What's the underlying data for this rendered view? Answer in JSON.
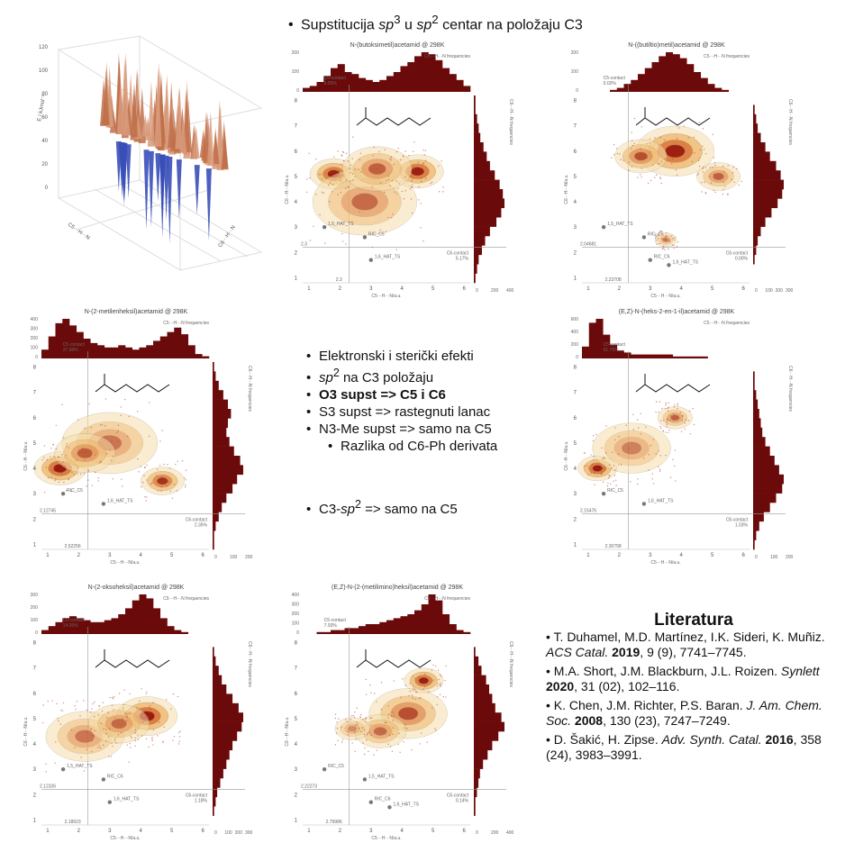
{
  "slide": {
    "top_bullet_marker": "•",
    "top_bullet_pre": "Supstitucija ",
    "top_bullet_sp3": "sp",
    "top_bullet_sup3": "3",
    "top_bullet_mid": " u ",
    "top_bullet_sp2": "sp",
    "top_bullet_sup2": "2",
    "top_bullet_post": " centar na položaju C3"
  },
  "mid_bullets": {
    "b1": "Elektronski i sterički efekti",
    "b2_sp": "sp",
    "b2_sup": "2",
    "b2_rest": " na C3 položaju",
    "b3": "O3 supst => C5 i C6",
    "b4": "S3 supst => rastegnuti lanac",
    "b5": "N3-Me supst => samo na C5",
    "b6": "Razlika od C6-Ph derivata",
    "b7_pre": "C3-",
    "b7_sp": "sp",
    "b7_sup": "2",
    "b7_post": " => samo na C5",
    "marker": "•"
  },
  "references": {
    "heading": "Literatura",
    "r1_pre": "• T. Duhamel, M.D. Martínez, I.K. Sideri, K. Muñiz. ",
    "r1_j": "ACS Catal.",
    "r1_y": "2019",
    "r1_post": ", 9 (9), 7741–7745.",
    "r2_pre": "• M.A. Short, J.M. Blackburn, J.L. Roizen. ",
    "r2_j": "Synlett",
    "r2_y": "2020",
    "r2_post": ", 31 (02), 102–116.",
    "r3_pre": "• K. Chen, J.M. Richter, P.S. Baran. ",
    "r3_j": "J. Am. Chem. Soc.",
    "r3_y": "2008",
    "r3_post": ", 130 (23), 7247–7249.",
    "r4_pre": "• D. Šakić, H. Zipse. ",
    "r4_j": "Adv. Synth. Catal.",
    "r4_y": "2016",
    "r4_post": ", 358 (24), 3983–3991."
  },
  "surface3d": {
    "z_label": "E / kJmol⁻¹",
    "x_label": "C5···H···N",
    "y_label": "C6···H···N",
    "z_ticks": [
      "0",
      "20",
      "40",
      "60",
      "80",
      "100",
      "120"
    ],
    "x_ticks": [
      "2",
      "3",
      "4",
      "5",
      "6"
    ],
    "y_ticks": [
      "2",
      "3",
      "4",
      "5",
      "6"
    ]
  },
  "chart_data": [
    {
      "type": "heatmap",
      "title": "N-(butoksimetil)acetamid @ 298K",
      "xlabel": "C5···H···N/a.u.",
      "ylabel": "C6···H···N/a.u.",
      "hist_label": "C5···H···N frequencies",
      "side_label": "C6···H···N frequencies",
      "c5_contact_label": "C5-contact",
      "c5_contact_value": "6.55%",
      "c6_contact_label": "C6-contact",
      "c6_contact_value": "5.17%",
      "xref_label": "2.3",
      "yref_label": "2.3",
      "points": [
        {
          "label": "1,5_HAT_TS"
        },
        {
          "label": "RIC_C5"
        },
        {
          "label": "1,6_HAT_TS"
        }
      ],
      "top_ticks": [
        "200",
        "100",
        "0"
      ],
      "right_ticks": [
        "0",
        "200",
        "400"
      ],
      "x_ticks": [
        "1",
        "2",
        "3",
        "4",
        "5",
        "6"
      ],
      "y_ticks": [
        "1",
        "2",
        "3",
        "4",
        "5",
        "6",
        "7",
        "8"
      ],
      "hist_top": [
        2,
        3,
        5,
        8,
        12,
        14,
        10,
        9,
        7,
        6,
        5,
        6,
        8,
        10,
        13,
        15,
        18,
        20,
        19,
        16,
        12,
        9,
        6,
        3
      ],
      "hist_side": [
        1,
        2,
        3,
        5,
        7,
        10,
        14,
        17,
        19,
        18,
        16,
        13,
        10,
        8,
        6,
        4,
        3,
        2,
        1,
        1
      ],
      "blobs": [
        {
          "x": 1.8,
          "y": 5.1,
          "r": 0.55,
          "i": 0.95
        },
        {
          "x": 4.5,
          "y": 5.2,
          "r": 0.6,
          "i": 0.95
        },
        {
          "x": 2.8,
          "y": 4.0,
          "r": 1.2,
          "i": 0.45
        },
        {
          "x": 3.2,
          "y": 5.3,
          "r": 0.8,
          "i": 0.5
        }
      ]
    },
    {
      "type": "heatmap",
      "title": "N-((butiltio)metil)acetamid @ 298K",
      "xlabel": "C5···H···N/a.u.",
      "ylabel": "C6···H···N/a.u.",
      "hist_label": "C5···H···N frequencies",
      "side_label": "C6···H···N frequencies",
      "c5_contact_label": "C5-contact",
      "c5_contact_value": "0.02%",
      "c6_contact_label": "C6-contact",
      "c6_contact_value": "0.00%",
      "xref_label": "2.23708",
      "yref_label": "2.04681",
      "points": [
        {
          "label": "1,5_HAT_TS"
        },
        {
          "label": "RIC_C5"
        },
        {
          "label": "RIC_C6"
        },
        {
          "label": "1,6_HAT_TS"
        }
      ],
      "top_ticks": [
        "200",
        "100",
        "0"
      ],
      "right_ticks": [
        "0",
        "100",
        "200",
        "300"
      ],
      "x_ticks": [
        "1",
        "2",
        "3",
        "4",
        "5",
        "6"
      ],
      "y_ticks": [
        "1",
        "2",
        "3",
        "4",
        "5",
        "6",
        "7",
        "8"
      ],
      "hist_top": [
        0,
        0,
        0,
        0,
        1,
        2,
        4,
        6,
        9,
        12,
        15,
        18,
        20,
        19,
        17,
        14,
        10,
        7,
        4,
        2,
        1,
        0,
        0,
        0
      ],
      "hist_side": [
        0,
        0,
        1,
        2,
        3,
        5,
        8,
        12,
        16,
        19,
        20,
        18,
        15,
        11,
        8,
        5,
        3,
        2,
        1,
        0
      ],
      "blobs": [
        {
          "x": 3.8,
          "y": 6.0,
          "r": 0.9,
          "i": 0.95
        },
        {
          "x": 2.7,
          "y": 5.8,
          "r": 0.6,
          "i": 0.6
        },
        {
          "x": 5.2,
          "y": 5.0,
          "r": 0.5,
          "i": 0.5
        },
        {
          "x": 3.5,
          "y": 2.5,
          "r": 0.25,
          "i": 0.4
        }
      ]
    },
    {
      "type": "heatmap",
      "title": "N-(2-metilenheksil)acetamid @ 298K",
      "xlabel": "C5···H···N/a.u.",
      "ylabel": "C6···H···N/a.u.",
      "hist_label": "C5···H···N frequencies",
      "side_label": "C6···H···N frequencies",
      "c5_contact_label": "C5-contact",
      "c5_contact_value": "37.58%",
      "c6_contact_label": "C6-contact",
      "c6_contact_value": "2.35%",
      "xref_label": "2.52256",
      "yref_label": "2.12745",
      "points": [
        {
          "label": "RIC_C5"
        },
        {
          "label": "1,6_HAT_TS"
        }
      ],
      "top_ticks": [
        "400",
        "300",
        "200",
        "100",
        "0"
      ],
      "right_ticks": [
        "0",
        "100",
        "200"
      ],
      "x_ticks": [
        "1",
        "2",
        "3",
        "4",
        "5",
        "6"
      ],
      "y_ticks": [
        "1",
        "2",
        "3",
        "4",
        "5",
        "6",
        "7",
        "8"
      ],
      "hist_top": [
        4,
        10,
        16,
        18,
        15,
        12,
        9,
        7,
        6,
        5,
        5,
        6,
        5,
        4,
        5,
        6,
        8,
        10,
        12,
        14,
        11,
        6,
        2,
        1
      ],
      "hist_side": [
        1,
        1,
        2,
        4,
        6,
        9,
        13,
        16,
        20,
        18,
        14,
        11,
        9,
        10,
        12,
        10,
        7,
        4,
        2,
        1
      ],
      "blobs": [
        {
          "x": 1.4,
          "y": 4.0,
          "r": 0.6,
          "i": 1.0
        },
        {
          "x": 4.7,
          "y": 3.5,
          "r": 0.5,
          "i": 0.8
        },
        {
          "x": 3.0,
          "y": 5.0,
          "r": 1.1,
          "i": 0.4
        },
        {
          "x": 2.2,
          "y": 4.6,
          "r": 0.7,
          "i": 0.5
        }
      ]
    },
    {
      "type": "heatmap",
      "title": "(E,Z)-N-(heks-2-en-1-il)acetamid @ 298K",
      "xlabel": "C5···H···N/a.u.",
      "ylabel": "C6···H···N/a.u.",
      "hist_label": "C5···H···N frequencies",
      "side_label": "C6···H···N frequencies",
      "c5_contact_label": "C5-contact",
      "c5_contact_value": "61.75%",
      "c6_contact_label": "C6-contact",
      "c6_contact_value": "1.03%",
      "xref_label": "2.30758",
      "yref_label": "2.15476",
      "points": [
        {
          "label": "RIC_C5"
        },
        {
          "label": "1,6_HAT_TS"
        }
      ],
      "top_ticks": [
        "600",
        "400",
        "200",
        "0"
      ],
      "right_ticks": [
        "0",
        "100",
        "200"
      ],
      "x_ticks": [
        "1",
        "2",
        "3",
        "4",
        "5",
        "6"
      ],
      "y_ticks": [
        "1",
        "2",
        "3",
        "4",
        "5",
        "6",
        "7",
        "8"
      ],
      "hist_top": [
        6,
        18,
        20,
        12,
        7,
        4,
        3,
        2,
        2,
        2,
        2,
        2,
        2,
        1,
        1,
        1,
        1,
        1,
        0,
        0,
        0,
        0,
        0,
        0
      ],
      "hist_side": [
        1,
        2,
        4,
        7,
        11,
        15,
        19,
        20,
        17,
        14,
        11,
        8,
        6,
        5,
        4,
        3,
        2,
        1,
        1,
        0
      ],
      "blobs": [
        {
          "x": 1.3,
          "y": 4.0,
          "r": 0.45,
          "i": 1.0
        },
        {
          "x": 2.4,
          "y": 4.8,
          "r": 0.9,
          "i": 0.35
        },
        {
          "x": 3.8,
          "y": 6.0,
          "r": 0.4,
          "i": 0.5
        }
      ]
    },
    {
      "type": "heatmap",
      "title": "N-(2-oksoheksil)acetamid @ 298K",
      "xlabel": "C5···H···N/a.u.",
      "ylabel": "C6···H···N/a.u.",
      "hist_label": "C5···H···N frequencies",
      "side_label": "C6···H···N frequencies",
      "c5_contact_label": "C5-contact",
      "c5_contact_value": "14.05%",
      "c6_contact_label": "C6-contact",
      "c6_contact_value": "1.18%",
      "xref_label": "2.18923",
      "yref_label": "2.12326",
      "points": [
        {
          "label": "1,5_HAT_TS"
        },
        {
          "label": "RIC_C6"
        },
        {
          "label": "1,6_HAT_TS"
        }
      ],
      "top_ticks": [
        "300",
        "200",
        "100",
        "0"
      ],
      "right_ticks": [
        "0",
        "100",
        "200",
        "300"
      ],
      "x_ticks": [
        "1",
        "2",
        "3",
        "4",
        "5",
        "6"
      ],
      "y_ticks": [
        "1",
        "2",
        "3",
        "4",
        "5",
        "6",
        "7",
        "8"
      ],
      "hist_top": [
        2,
        4,
        6,
        8,
        9,
        8,
        7,
        6,
        6,
        7,
        8,
        10,
        13,
        17,
        20,
        18,
        13,
        8,
        4,
        2,
        1,
        0,
        0,
        0
      ],
      "hist_side": [
        0,
        1,
        2,
        3,
        5,
        7,
        9,
        11,
        13,
        16,
        19,
        20,
        17,
        13,
        9,
        6,
        4,
        2,
        1,
        0
      ],
      "blobs": [
        {
          "x": 4.2,
          "y": 5.1,
          "r": 0.7,
          "i": 1.0
        },
        {
          "x": 2.2,
          "y": 4.3,
          "r": 0.9,
          "i": 0.4
        },
        {
          "x": 3.3,
          "y": 4.8,
          "r": 0.7,
          "i": 0.45
        }
      ]
    },
    {
      "type": "heatmap",
      "title": "(E,Z)-N-(2-(metilimino)heksil)acetamid @ 298K",
      "xlabel": "C5···H···N/a.u.",
      "ylabel": "C6···H···N/a.u.",
      "hist_label": "C5···H···N frequencies",
      "side_label": "C6···H···N frequencies",
      "c5_contact_label": "C5-contact",
      "c5_contact_value": "7.93%",
      "c6_contact_label": "C6-contact",
      "c6_contact_value": "0.14%",
      "xref_label": "2.79986",
      "yref_label": "2.22273",
      "points": [
        {
          "label": "RIC_C5"
        },
        {
          "label": "1,5_HAT_TS"
        },
        {
          "label": "RIC_C6"
        },
        {
          "label": "1,6_HAT_TS"
        }
      ],
      "top_ticks": [
        "400",
        "300",
        "200",
        "100",
        "0"
      ],
      "right_ticks": [
        "0",
        "200",
        "400"
      ],
      "x_ticks": [
        "1",
        "2",
        "3",
        "4",
        "5",
        "6"
      ],
      "y_ticks": [
        "1",
        "2",
        "3",
        "4",
        "5",
        "6",
        "7",
        "8"
      ],
      "hist_top": [
        0,
        0,
        1,
        1,
        2,
        2,
        3,
        3,
        4,
        5,
        5,
        6,
        7,
        8,
        9,
        10,
        12,
        15,
        20,
        17,
        10,
        5,
        2,
        1
      ],
      "hist_side": [
        0,
        1,
        1,
        2,
        3,
        4,
        6,
        9,
        12,
        16,
        20,
        18,
        14,
        12,
        10,
        8,
        5,
        3,
        1,
        0
      ],
      "blobs": [
        {
          "x": 4.7,
          "y": 6.5,
          "r": 0.45,
          "i": 0.95
        },
        {
          "x": 4.2,
          "y": 5.2,
          "r": 0.9,
          "i": 0.6
        },
        {
          "x": 3.3,
          "y": 4.5,
          "r": 0.6,
          "i": 0.45
        },
        {
          "x": 2.4,
          "y": 4.6,
          "r": 0.4,
          "i": 0.3
        }
      ]
    }
  ]
}
